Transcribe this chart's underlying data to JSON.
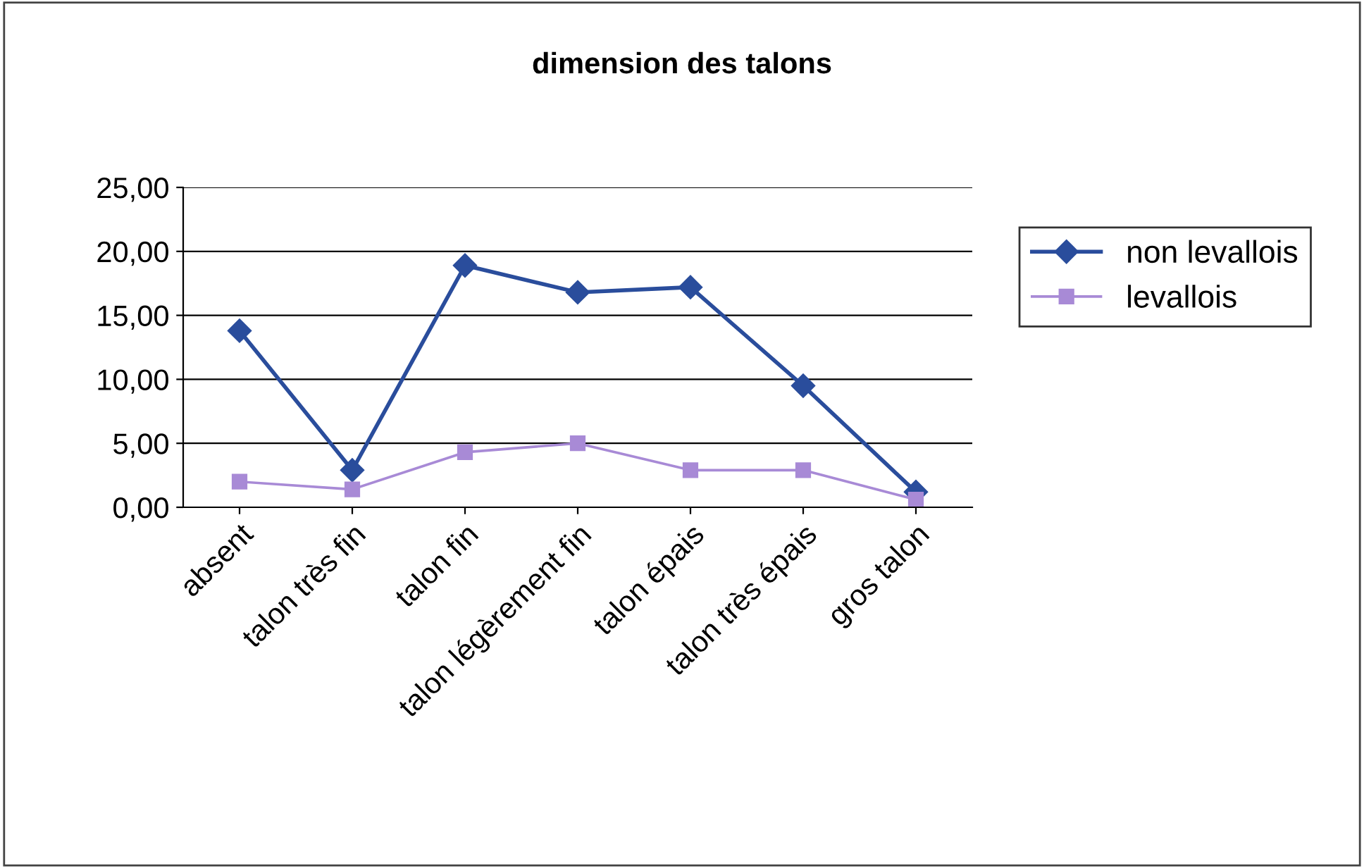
{
  "chart_data": {
    "type": "line",
    "title": "dimension des talons",
    "categories": [
      "absent",
      "talon très fin",
      "talon fin",
      "talon légèrement fin",
      "talon épais",
      "talon très épais",
      "gros talon"
    ],
    "series": [
      {
        "name": "non levallois",
        "color": "#2a4d9c",
        "marker": "diamond",
        "values": [
          13.8,
          2.9,
          18.9,
          16.8,
          17.2,
          9.5,
          1.2
        ]
      },
      {
        "name": "levallois",
        "color": "#a88ad6",
        "marker": "square",
        "values": [
          2.0,
          1.4,
          4.3,
          5.0,
          2.9,
          2.9,
          0.6
        ]
      }
    ],
    "ylim": [
      0,
      25
    ],
    "yticks": [
      {
        "value": 0,
        "label": "0,00"
      },
      {
        "value": 5,
        "label": "5,00"
      },
      {
        "value": 10,
        "label": "10,00"
      },
      {
        "value": 15,
        "label": "15,00"
      },
      {
        "value": 20,
        "label": "20,00"
      },
      {
        "value": 25,
        "label": "25,00"
      }
    ],
    "grid": "y",
    "legend": "right",
    "line_style": "solid"
  }
}
